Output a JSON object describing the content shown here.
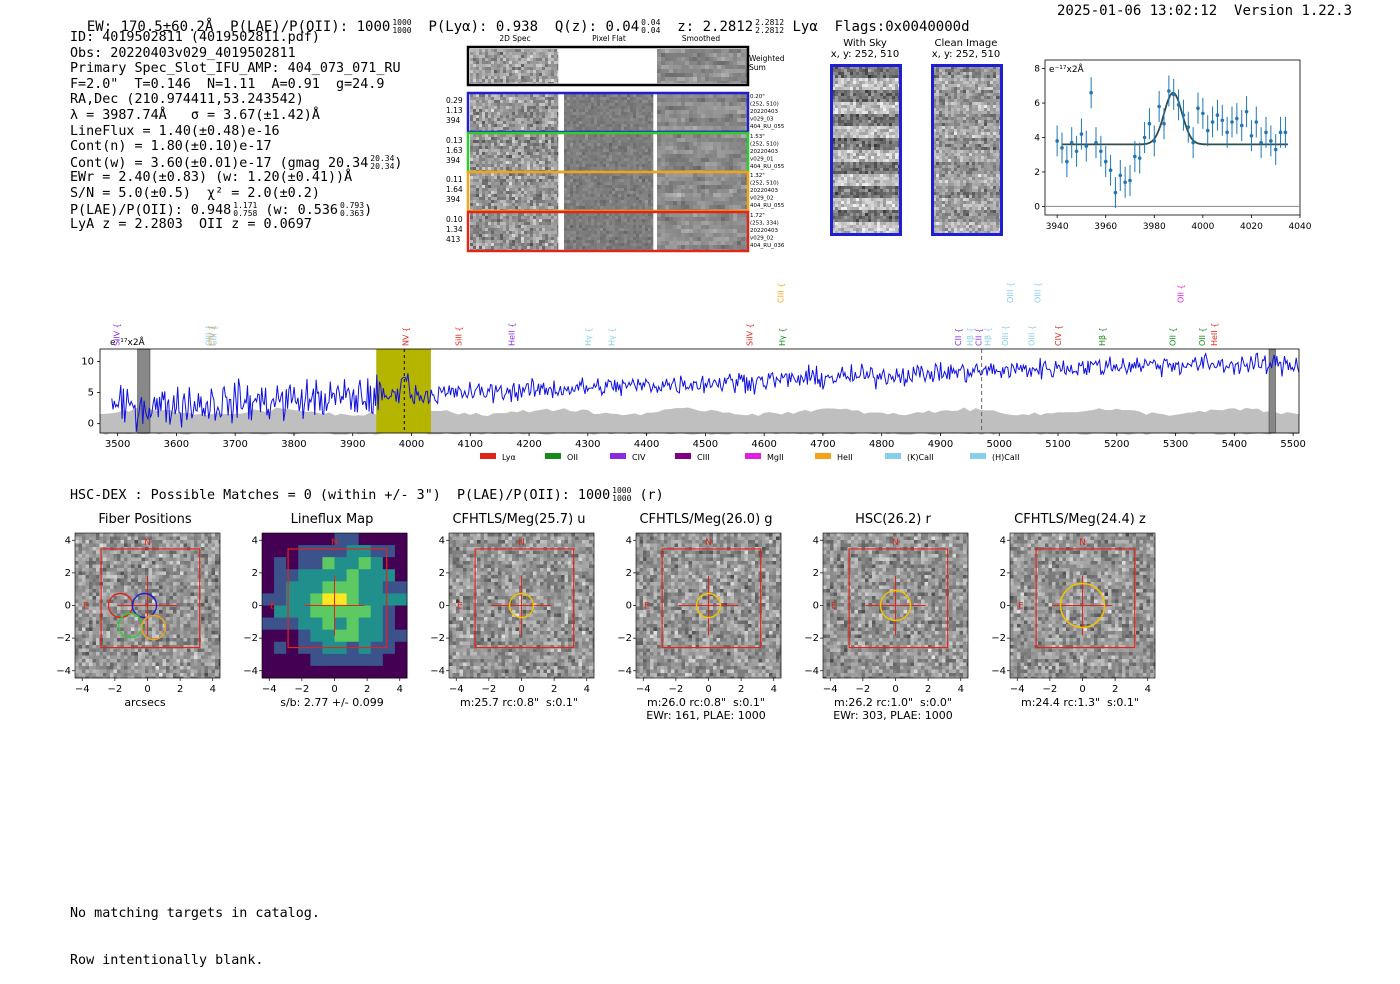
{
  "header": {
    "ew": "EW: 170.5±60.2Å",
    "plae_label": "P(LAE)/P(OII): 1000",
    "plae_hi": "1000",
    "plae_lo": "1000",
    "plya": "P(Lyα): 0.938",
    "qz_label": "Q(z): 0.04",
    "qz_hi": "0.04",
    "qz_lo": "0.04",
    "z_label": "z: 2.2812",
    "z_hi": "2.2812",
    "z_lo": "2.2812",
    "z_line": "Lyα",
    "flags": "Flags:0x0040000d",
    "timestamp": "2025-01-06 13:02:12",
    "version": "Version 1.22.3"
  },
  "info": {
    "id": "ID: 4019502811 (4019502811.pdf)",
    "obs": "Obs: 20220403v029_4019502811",
    "primary": "Primary Spec_Slot_IFU_AMP: 404_073_071_RU",
    "fit": "F=2.0\"  T=0.146  N=1.11  A=0.91  g=24.9",
    "radec": "RA,Dec (210.974411,53.243542)",
    "lambda": "λ = 3987.74Å   σ = 3.67(±1.42)Å",
    "lineflux": "LineFlux = 1.40(±0.48)e-16",
    "contn": "Cont(n) = 1.80(±0.10)e-17",
    "contw": "Cont(w) = 3.60(±0.01)e-17 (gmag 20.34",
    "contw_hi": "20.34",
    "contw_lo": "20.34",
    "contw_end": ")",
    "ewr": "EWr = 2.40(±0.83) (w: 1.20(±0.41))Å",
    "sn": "S/N = 5.0(±0.5)  χ² = 2.0(±0.2)",
    "plae": "P(LAE)/P(OII): 0.948",
    "plae_hi": "1.171",
    "plae_lo": "0.758",
    "plae_w": "(w: 0.536",
    "plae_w_hi": "0.793",
    "plae_w_lo": "0.363",
    "plae_w_end": ")",
    "lyaz": "LyA z = 2.2803  OII z = 0.0697"
  },
  "cutouts2d": {
    "col_headers": [
      "2D Spec",
      "Pixel Flat",
      "Smoothed"
    ],
    "weighted_label": [
      "Weighted",
      "Sum"
    ],
    "rows": [
      {
        "left": [
          "0.29",
          "1.13",
          "394"
        ],
        "right": [
          "0.20\"",
          "(252, 510)",
          "20220403",
          "v029_03",
          "404_RU_055"
        ],
        "color": "#1f1fd0"
      },
      {
        "left": [
          "0.13",
          "1.63",
          "394"
        ],
        "right": [
          "1.53\"",
          "(252, 510)",
          "20220403",
          "v029_01",
          "404_RU_055"
        ],
        "color": "#2ecc2e"
      },
      {
        "left": [
          "0.11",
          "1.64",
          "394"
        ],
        "right": [
          "1.32\"",
          "(252, 510)",
          "20220403",
          "v029_02",
          "404_RU_055"
        ],
        "color": "#f5a21a"
      },
      {
        "left": [
          "0.10",
          "1.34",
          "413"
        ],
        "right": [
          "1.72\"",
          "(253, 334)",
          "20220403",
          "v029_02",
          "404_RU_036"
        ],
        "color": "#e0261a"
      }
    ]
  },
  "sky": {
    "with_sky_title": "With Sky",
    "with_sky_coords": "x, y: 252, 510",
    "clean_title": "Clean Image",
    "clean_coords": "x, y: 252, 510"
  },
  "zoom_chart": {
    "ylabel": "e⁻¹⁷x2Å",
    "xticks": [
      "3940",
      "3960",
      "3980",
      "4000",
      "4020",
      "4040"
    ],
    "yticks": [
      "0",
      "2",
      "4",
      "6",
      "8"
    ]
  },
  "full_spectrum": {
    "ylabel": "e⁻¹⁷x2Å",
    "xticks": [
      "3500",
      "3600",
      "3700",
      "3800",
      "3900",
      "4000",
      "4100",
      "4200",
      "4300",
      "4400",
      "4500",
      "4600",
      "4700",
      "4800",
      "4900",
      "5000",
      "5100",
      "5200",
      "5300",
      "5400",
      "5500"
    ],
    "yticks": [
      "0",
      "5",
      "10"
    ],
    "line_labels": [
      {
        "t": "SiIV",
        "w": 3498,
        "c": "#8a2be2"
      },
      {
        "t": "OIII",
        "w": 3655,
        "c": "#87ceeb"
      },
      {
        "t": "CIV",
        "w": 3660,
        "c": "#f5a21a"
      },
      {
        "t": "CIII",
        "w": 3663,
        "c": "#87ceeb"
      },
      {
        "t": "NV",
        "w": 3990,
        "c": "#e0261a"
      },
      {
        "t": "SiII",
        "w": 4080,
        "c": "#e0261a"
      },
      {
        "t": "HeII",
        "w": 4170,
        "c": "#8a2be2"
      },
      {
        "t": "Hγ",
        "w": 4300,
        "c": "#87ceeb"
      },
      {
        "t": "Hγ",
        "w": 4340,
        "c": "#87ceeb"
      },
      {
        "t": "SiIV",
        "w": 4575,
        "c": "#e0261a"
      },
      {
        "t": "Hγ",
        "w": 4630,
        "c": "#1a8a1a"
      },
      {
        "t": "CIII",
        "w": 4628,
        "c": "#f5a21a",
        "high": true
      },
      {
        "t": "CII",
        "w": 4930,
        "c": "#8a2be2"
      },
      {
        "t": "Hβ",
        "w": 4950,
        "c": "#87ceeb"
      },
      {
        "t": "CII",
        "w": 4965,
        "c": "#8a2be2"
      },
      {
        "t": "Hβ",
        "w": 4980,
        "c": "#87ceeb"
      },
      {
        "t": "OIII",
        "w": 5010,
        "c": "#87ceeb"
      },
      {
        "t": "OIII",
        "w": 5055,
        "c": "#87ceeb"
      },
      {
        "t": "OIII",
        "w": 5018,
        "c": "#87ceeb",
        "high": true
      },
      {
        "t": "OIII",
        "w": 5065,
        "c": "#87ceeb",
        "high": true
      },
      {
        "t": "CIV",
        "w": 5100,
        "c": "#e0261a"
      },
      {
        "t": "Hβ",
        "w": 5175,
        "c": "#1a8a1a"
      },
      {
        "t": "OII",
        "w": 5295,
        "c": "#1a8a1a"
      },
      {
        "t": "OII",
        "w": 5308,
        "c": "#e020e0",
        "high": true
      },
      {
        "t": "OII",
        "w": 5345,
        "c": "#1a8a1a"
      },
      {
        "t": "HeII",
        "w": 5365,
        "c": "#e0261a"
      }
    ],
    "legend": [
      {
        "label": "Lyα",
        "color": "#e0261a"
      },
      {
        "label": "OII",
        "color": "#1a8a1a"
      },
      {
        "label": "CIV",
        "color": "#8a2be2"
      },
      {
        "label": "CIII",
        "color": "#800080"
      },
      {
        "label": "MgII",
        "color": "#e020e0"
      },
      {
        "label": "HeII",
        "color": "#f5a21a"
      },
      {
        "label": "(K)CaII",
        "color": "#87ceeb"
      },
      {
        "label": "(H)CaII",
        "color": "#87ceeb"
      }
    ]
  },
  "hsc": {
    "title": "HSC-DEX : Possible Matches = 0 (within +/- 3\")  P(LAE)/P(OII): 1000",
    "hi": "1000",
    "lo": "1000",
    "end": "(r)"
  },
  "cutouts": [
    {
      "title": "Fiber Positions",
      "foot1": "arcsecs",
      "foot2": ""
    },
    {
      "title": "Lineflux Map",
      "foot1": "s/b: 2.77 +/- 0.099",
      "foot2": ""
    },
    {
      "title": "CFHTLS/Meg(25.7) u",
      "foot1": "m:25.7 rc:0.8\"  s:0.1\"",
      "foot2": ""
    },
    {
      "title": "CFHTLS/Meg(26.0) g",
      "foot1": "m:26.0 rc:0.8\"  s:0.1\"",
      "foot2": "EWr: 161, PLAE: 1000"
    },
    {
      "title": "HSC(26.2) r",
      "foot1": "m:26.2 rc:1.0\"  s:0.0\"",
      "foot2": "EWr: 303, PLAE: 1000"
    },
    {
      "title": "CFHTLS/Meg(24.4) z",
      "foot1": "m:24.4 rc:1.3\"  s:0.1\"",
      "foot2": ""
    }
  ],
  "cutout_axes": {
    "xticks": [
      "−4",
      "−2",
      "0",
      "2",
      "4"
    ],
    "yticks": [
      "4",
      "2",
      "0",
      "−2",
      "−4"
    ],
    "north": "N",
    "east": "E"
  },
  "footer": {
    "line1": "No matching targets in catalog.",
    "line2": "Row intentionally blank."
  },
  "chart_data": [
    {
      "type": "scatter",
      "title": "",
      "xlabel": "",
      "ylabel": "e⁻¹⁷x2Å",
      "xlim": [
        3935,
        4040
      ],
      "ylim": [
        -0.5,
        8.5
      ],
      "x": [
        3940,
        3942,
        3944,
        3946,
        3948,
        3950,
        3952,
        3954,
        3956,
        3958,
        3960,
        3962,
        3964,
        3966,
        3968,
        3970,
        3972,
        3974,
        3976,
        3978,
        3980,
        3982,
        3984,
        3986,
        3988,
        3990,
        3992,
        3994,
        3996,
        3998,
        4000,
        4002,
        4004,
        4006,
        4008,
        4010,
        4012,
        4014,
        4016,
        4018,
        4020,
        4022,
        4024,
        4026,
        4028,
        4030,
        4032,
        4034
      ],
      "y": [
        3.8,
        3.4,
        2.6,
        3.7,
        3.2,
        4.2,
        3.5,
        6.6,
        3.7,
        3.2,
        2.6,
        2.1,
        0.8,
        1.8,
        1.4,
        1.5,
        2.9,
        2.8,
        4.0,
        4.8,
        3.8,
        5.8,
        4.8,
        6.7,
        6.5,
        5.9,
        5.3,
        4.6,
        3.7,
        5.7,
        5.4,
        4.4,
        4.9,
        5.3,
        5.0,
        4.3,
        4.9,
        5.1,
        4.7,
        5.5,
        4.1,
        4.9,
        3.7,
        4.3,
        3.8,
        3.3,
        4.3,
        4.3
      ],
      "yerr": [
        0.9,
        0.9,
        0.9,
        0.9,
        0.9,
        0.9,
        0.9,
        0.9,
        0.9,
        0.9,
        0.9,
        0.9,
        0.9,
        0.9,
        0.9,
        0.9,
        0.9,
        0.9,
        0.9,
        0.9,
        0.9,
        0.9,
        0.9,
        0.9,
        0.9,
        0.9,
        0.9,
        0.9,
        0.9,
        0.9,
        0.9,
        0.9,
        0.9,
        0.9,
        0.9,
        0.9,
        0.9,
        0.9,
        0.9,
        0.9,
        0.9,
        0.9,
        0.9,
        0.9,
        0.9,
        0.9,
        0.9,
        0.9
      ],
      "fit": {
        "center": 3987.74,
        "sigma": 3.67,
        "continuum": 3.6,
        "amplitude": 3.0
      },
      "grid": false
    },
    {
      "type": "line",
      "title": "",
      "xlabel": "",
      "ylabel": "e⁻¹⁷x2Å",
      "xlim": [
        3470,
        5510
      ],
      "ylim": [
        -1.5,
        12
      ],
      "continuum_start": 2.5,
      "continuum_end": 9.5,
      "noise_amplitude": 2.5,
      "highlight_band": [
        3940,
        4033
      ],
      "highlight_color": "#b5b500",
      "line_marker": 3987.74,
      "dashed_marker": 4970,
      "masked_regions": [
        [
          3534,
          3555
        ],
        [
          5459,
          5470
        ]
      ]
    }
  ]
}
